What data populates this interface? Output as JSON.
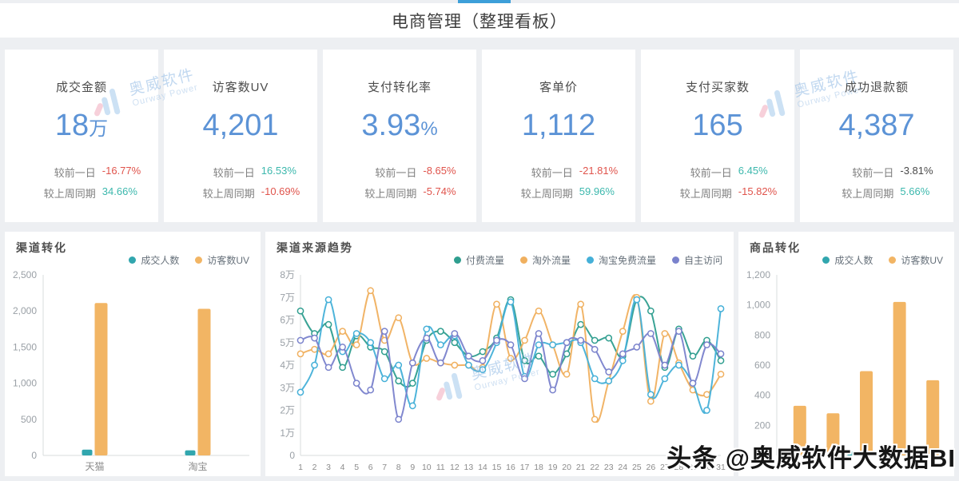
{
  "page": {
    "title": "电商管理（整理看板）",
    "bottom_watermark": "头条 @奥威软件大数据BI",
    "brand_watermark": {
      "cn": "奥威软件",
      "en": "Ourway Power"
    }
  },
  "colors": {
    "accent_blue": "#5c93d6",
    "negative_red": "#e0544c",
    "positive_teal": "#3cb8ad",
    "bar_teal": "#31a6ae",
    "bar_orange": "#f2b564",
    "line_teal": "#2f9e8f",
    "line_orange": "#f0b05f",
    "line_cyan": "#45b0d8",
    "line_purple": "#7a82cc"
  },
  "kpis": [
    {
      "title": "成交金额",
      "value": "18",
      "suffix": "万",
      "stats": [
        {
          "label": "较前一日",
          "value": "-16.77%",
          "color": "#e0544c"
        },
        {
          "label": "较上周同期",
          "value": "34.66%",
          "color": "#3cb8ad"
        }
      ]
    },
    {
      "title": "访客数UV",
      "value": "4,201",
      "suffix": "",
      "stats": [
        {
          "label": "较前一日",
          "value": "16.53%",
          "color": "#3cb8ad"
        },
        {
          "label": "较上周同期",
          "value": "-10.69%",
          "color": "#e0544c"
        }
      ]
    },
    {
      "title": "支付转化率",
      "value": "3.93",
      "suffix": "%",
      "stats": [
        {
          "label": "较前一日",
          "value": "-8.65%",
          "color": "#e0544c"
        },
        {
          "label": "较上周同期",
          "value": "-5.74%",
          "color": "#e0544c"
        }
      ]
    },
    {
      "title": "客单价",
      "value": "1,112",
      "suffix": "",
      "stats": [
        {
          "label": "较前一日",
          "value": "-21.81%",
          "color": "#e0544c"
        },
        {
          "label": "较上周同期",
          "value": "59.96%",
          "color": "#3cb8ad"
        }
      ]
    },
    {
      "title": "支付买家数",
      "value": "165",
      "suffix": "",
      "stats": [
        {
          "label": "较前一日",
          "value": "6.45%",
          "color": "#3cb8ad"
        },
        {
          "label": "较上周同期",
          "value": "-15.82%",
          "color": "#e0544c"
        }
      ]
    },
    {
      "title": "成功退款额",
      "value": "4,387",
      "suffix": "",
      "stats": [
        {
          "label": "较前一日",
          "value": "-3.81%",
          "color": "#4a4a4a"
        },
        {
          "label": "较上周同期",
          "value": "5.66%",
          "color": "#3cb8ad"
        }
      ]
    }
  ],
  "chart_data": [
    {
      "type": "bar",
      "title": "渠道转化",
      "categories": [
        "天猫",
        "淘宝"
      ],
      "series": [
        {
          "name": "成交人数",
          "color": "#31a6ae",
          "values": [
            80,
            70
          ]
        },
        {
          "name": "访客数UV",
          "color": "#f2b564",
          "values": [
            2110,
            2030
          ]
        }
      ],
      "ylim": [
        0,
        2500
      ],
      "grid": false,
      "legend_position": "top-right",
      "yticks": [
        {
          "v": 0,
          "label": "0"
        },
        {
          "v": 500,
          "label": "500"
        },
        {
          "v": 1000,
          "label": "1,000"
        },
        {
          "v": 1500,
          "label": "1,500"
        },
        {
          "v": 2000,
          "label": "2,000"
        },
        {
          "v": 2500,
          "label": "2,500"
        }
      ]
    },
    {
      "type": "line",
      "title": "渠道来源趋势",
      "x": [
        "1",
        "2",
        "3",
        "4",
        "5",
        "6",
        "7",
        "8",
        "9",
        "10",
        "11",
        "12",
        "13",
        "14",
        "15",
        "16",
        "17",
        "18",
        "19",
        "20",
        "21",
        "22",
        "23",
        "24",
        "25",
        "26",
        "27",
        "28",
        "29",
        "30",
        "31"
      ],
      "unit": "万",
      "series": [
        {
          "name": "付费流量",
          "color": "#2f9e8f",
          "values": [
            6.4,
            5.4,
            5.8,
            3.9,
            5.3,
            4.8,
            4.6,
            3.3,
            3.2,
            5.1,
            5.5,
            5.0,
            4.4,
            4.6,
            5.2,
            6.9,
            4.2,
            4.4,
            3.6,
            4.5,
            5.8,
            5.1,
            5.2,
            4.4,
            6.9,
            6.4,
            3.9,
            5.6,
            4.4,
            5.1,
            4.2
          ]
        },
        {
          "name": "淘外流量",
          "color": "#f0b05f",
          "values": [
            4.5,
            4.7,
            4.5,
            5.5,
            4.9,
            7.3,
            5.1,
            6.1,
            4.1,
            4.3,
            4.1,
            4.0,
            4.0,
            3.9,
            6.7,
            4.3,
            5.1,
            6.4,
            4.9,
            3.6,
            6.7,
            1.6,
            3.3,
            5.5,
            7.0,
            2.4,
            5.4,
            4.1,
            2.9,
            2.7,
            3.6
          ]
        },
        {
          "name": "淘宝免费流量",
          "color": "#45b0d8",
          "values": [
            2.8,
            4.0,
            6.9,
            4.6,
            5.4,
            5.0,
            3.4,
            4.0,
            2.2,
            5.6,
            4.9,
            5.3,
            4.0,
            3.8,
            5.0,
            6.8,
            3.5,
            4.9,
            4.9,
            5.0,
            5.0,
            3.4,
            3.3,
            4.2,
            6.9,
            2.7,
            3.4,
            4.0,
            3.2,
            2.0,
            6.5
          ]
        },
        {
          "name": "自主访问",
          "color": "#7a82cc",
          "values": [
            5.1,
            5.2,
            3.9,
            4.8,
            3.2,
            2.9,
            5.5,
            1.6,
            4.1,
            5.2,
            4.1,
            5.4,
            4.4,
            4.2,
            5.1,
            4.9,
            3.4,
            5.4,
            2.9,
            5.0,
            5.1,
            4.7,
            3.7,
            4.5,
            4.8,
            5.4,
            4.0,
            5.5,
            3.2,
            4.9,
            4.5
          ]
        }
      ],
      "ylim": [
        0,
        8
      ],
      "grid": false,
      "legend_position": "top-right",
      "yticks": [
        {
          "v": 0,
          "label": "0"
        },
        {
          "v": 1,
          "label": "1万"
        },
        {
          "v": 2,
          "label": "2万"
        },
        {
          "v": 3,
          "label": "3万"
        },
        {
          "v": 4,
          "label": "4万"
        },
        {
          "v": 5,
          "label": "5万"
        },
        {
          "v": 6,
          "label": "6万"
        },
        {
          "v": 7,
          "label": "7万"
        },
        {
          "v": 8,
          "label": "8万"
        }
      ]
    },
    {
      "type": "bar",
      "title": "商品转化",
      "categories": [
        "",
        "",
        "",
        "",
        ""
      ],
      "series": [
        {
          "name": "成交人数",
          "color": "#31a6ae",
          "values": [
            15,
            12,
            25,
            40,
            20
          ]
        },
        {
          "name": "访客数UV",
          "color": "#f2b564",
          "values": [
            330,
            280,
            560,
            1020,
            500
          ]
        }
      ],
      "ylim": [
        0,
        1200
      ],
      "grid": false,
      "legend_position": "top-right",
      "yticks": [
        {
          "v": 0,
          "label": "0"
        },
        {
          "v": 200,
          "label": "200"
        },
        {
          "v": 400,
          "label": "400"
        },
        {
          "v": 600,
          "label": "600"
        },
        {
          "v": 800,
          "label": "800"
        },
        {
          "v": 1000,
          "label": "1,000"
        },
        {
          "v": 1200,
          "label": "1,200"
        }
      ]
    }
  ]
}
